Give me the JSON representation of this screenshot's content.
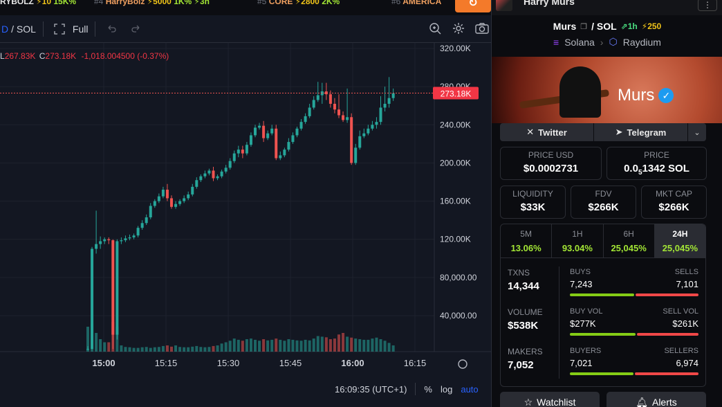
{
  "ticker": {
    "items": [
      {
        "rank": "",
        "name": "RYBOLZ",
        "bolt": "⚡10",
        "pct": "15K%"
      },
      {
        "rank": "#4",
        "name": "HarryBolz",
        "bolt": "⚡5000",
        "pct": "1K% ⚡3h"
      },
      {
        "rank": "#5",
        "name": "CORE",
        "bolt": "⚡2800",
        "pct": "2K%"
      },
      {
        "rank": "#6",
        "name": "AMERICA",
        "bolt": "",
        "pct": ""
      }
    ]
  },
  "toolbar": {
    "pair_prefix": "D",
    "pair": "/ SOL",
    "full_label": "Full"
  },
  "ohlc": {
    "l_label": "L",
    "l_value": "267.83K",
    "c_label": "C",
    "c_value": "273.18K",
    "change": "-1,018.004500 (-0.37%)"
  },
  "chart_data": {
    "type": "candlestick",
    "title": "",
    "y_ticks": [
      "320.00K",
      "280.00K",
      "240.00K",
      "200.00K",
      "160.00K",
      "120.00K",
      "80,000.00",
      "40,000.00"
    ],
    "y_tick_values": [
      320000,
      280000,
      240000,
      200000,
      160000,
      120000,
      80000,
      40000
    ],
    "ylim": [
      0,
      330000
    ],
    "x_ticks": [
      "15:00",
      "15:15",
      "15:30",
      "15:45",
      "16:00",
      "16:15"
    ],
    "last_price_label": "273.18K",
    "last_price": 273180,
    "up_color": "#26a69a",
    "down_color": "#ef5350",
    "candles": [
      {
        "o": 5000,
        "h": 8000,
        "c": 5000,
        "l": 4000
      },
      {
        "o": 5000,
        "h": 112000,
        "c": 110000,
        "l": 5000
      },
      {
        "o": 110000,
        "h": 150000,
        "c": 115000,
        "l": 105000
      },
      {
        "o": 115000,
        "h": 123000,
        "c": 118000,
        "l": 110000
      },
      {
        "o": 118000,
        "h": 122000,
        "c": 120000,
        "l": 115000
      },
      {
        "o": 120000,
        "h": 122000,
        "c": 119000,
        "l": 115000
      },
      {
        "o": 119000,
        "h": 120000,
        "c": 20000,
        "l": 5000
      },
      {
        "o": 20000,
        "h": 120000,
        "c": 118000,
        "l": 15000
      },
      {
        "o": 118000,
        "h": 122000,
        "c": 119000,
        "l": 115000
      },
      {
        "o": 119000,
        "h": 124000,
        "c": 121000,
        "l": 117000
      },
      {
        "o": 121000,
        "h": 125000,
        "c": 122000,
        "l": 119000
      },
      {
        "o": 122000,
        "h": 126000,
        "c": 124000,
        "l": 120000
      },
      {
        "o": 124000,
        "h": 134000,
        "c": 132000,
        "l": 122000
      },
      {
        "o": 132000,
        "h": 140000,
        "c": 137000,
        "l": 130000
      },
      {
        "o": 137000,
        "h": 146000,
        "c": 143000,
        "l": 135000
      },
      {
        "o": 143000,
        "h": 158000,
        "c": 155000,
        "l": 141000
      },
      {
        "o": 155000,
        "h": 162000,
        "c": 160000,
        "l": 153000
      },
      {
        "o": 160000,
        "h": 168000,
        "c": 165000,
        "l": 158000
      },
      {
        "o": 165000,
        "h": 175000,
        "c": 172000,
        "l": 163000
      },
      {
        "o": 172000,
        "h": 178000,
        "c": 163000,
        "l": 160000
      },
      {
        "o": 163000,
        "h": 166000,
        "c": 154000,
        "l": 152000
      },
      {
        "o": 154000,
        "h": 160000,
        "c": 157000,
        "l": 152000
      },
      {
        "o": 157000,
        "h": 162000,
        "c": 160000,
        "l": 155000
      },
      {
        "o": 160000,
        "h": 166000,
        "c": 163000,
        "l": 158000
      },
      {
        "o": 163000,
        "h": 170000,
        "c": 167000,
        "l": 161000
      },
      {
        "o": 167000,
        "h": 178000,
        "c": 175000,
        "l": 165000
      },
      {
        "o": 175000,
        "h": 185000,
        "c": 182000,
        "l": 173000
      },
      {
        "o": 182000,
        "h": 188000,
        "c": 186000,
        "l": 180000
      },
      {
        "o": 186000,
        "h": 192000,
        "c": 189000,
        "l": 184000
      },
      {
        "o": 189000,
        "h": 194000,
        "c": 192000,
        "l": 187000
      },
      {
        "o": 192000,
        "h": 196000,
        "c": 184000,
        "l": 181000
      },
      {
        "o": 184000,
        "h": 188000,
        "c": 186000,
        "l": 182000
      },
      {
        "o": 186000,
        "h": 193000,
        "c": 191000,
        "l": 184000
      },
      {
        "o": 191000,
        "h": 198000,
        "c": 195000,
        "l": 189000
      },
      {
        "o": 195000,
        "h": 205000,
        "c": 202000,
        "l": 193000
      },
      {
        "o": 202000,
        "h": 213000,
        "c": 210000,
        "l": 200000
      },
      {
        "o": 210000,
        "h": 218000,
        "c": 214000,
        "l": 206000
      },
      {
        "o": 214000,
        "h": 218000,
        "c": 210000,
        "l": 205000
      },
      {
        "o": 210000,
        "h": 222000,
        "c": 219000,
        "l": 208000
      },
      {
        "o": 219000,
        "h": 232000,
        "c": 229000,
        "l": 217000
      },
      {
        "o": 229000,
        "h": 240000,
        "c": 237000,
        "l": 227000
      },
      {
        "o": 237000,
        "h": 242000,
        "c": 239000,
        "l": 235000
      },
      {
        "o": 239000,
        "h": 244000,
        "c": 226000,
        "l": 222000
      },
      {
        "o": 226000,
        "h": 234000,
        "c": 231000,
        "l": 224000
      },
      {
        "o": 231000,
        "h": 240000,
        "c": 236000,
        "l": 229000
      },
      {
        "o": 236000,
        "h": 240000,
        "c": 205000,
        "l": 203000
      },
      {
        "o": 205000,
        "h": 212000,
        "c": 208000,
        "l": 203000
      },
      {
        "o": 208000,
        "h": 216000,
        "c": 214000,
        "l": 206000
      },
      {
        "o": 214000,
        "h": 226000,
        "c": 222000,
        "l": 212000
      },
      {
        "o": 222000,
        "h": 232000,
        "c": 229000,
        "l": 220000
      },
      {
        "o": 229000,
        "h": 238000,
        "c": 236000,
        "l": 227000
      },
      {
        "o": 236000,
        "h": 246000,
        "c": 243000,
        "l": 234000
      },
      {
        "o": 243000,
        "h": 252000,
        "c": 249000,
        "l": 241000
      },
      {
        "o": 249000,
        "h": 262000,
        "c": 258000,
        "l": 247000
      },
      {
        "o": 258000,
        "h": 270000,
        "c": 266000,
        "l": 256000
      },
      {
        "o": 266000,
        "h": 285000,
        "c": 271000,
        "l": 264000
      },
      {
        "o": 271000,
        "h": 284000,
        "c": 275000,
        "l": 262000
      },
      {
        "o": 275000,
        "h": 284000,
        "c": 272000,
        "l": 266000
      },
      {
        "o": 272000,
        "h": 276000,
        "c": 262000,
        "l": 258000
      },
      {
        "o": 262000,
        "h": 268000,
        "c": 256000,
        "l": 252000
      },
      {
        "o": 256000,
        "h": 272000,
        "c": 250000,
        "l": 247000
      },
      {
        "o": 250000,
        "h": 254000,
        "c": 245000,
        "l": 243000
      },
      {
        "o": 245000,
        "h": 278000,
        "c": 248000,
        "l": 242000
      },
      {
        "o": 248000,
        "h": 252000,
        "c": 200000,
        "l": 198000
      },
      {
        "o": 200000,
        "h": 220000,
        "c": 216000,
        "l": 198000
      },
      {
        "o": 216000,
        "h": 234000,
        "c": 228000,
        "l": 214000
      },
      {
        "o": 228000,
        "h": 236000,
        "c": 231000,
        "l": 226000
      },
      {
        "o": 231000,
        "h": 240000,
        "c": 236000,
        "l": 229000
      },
      {
        "o": 236000,
        "h": 244000,
        "c": 240000,
        "l": 234000
      },
      {
        "o": 240000,
        "h": 248000,
        "c": 243000,
        "l": 236000
      },
      {
        "o": 243000,
        "h": 270000,
        "c": 258000,
        "l": 240000
      },
      {
        "o": 258000,
        "h": 280000,
        "c": 262000,
        "l": 254000
      },
      {
        "o": 262000,
        "h": 290000,
        "c": 268000,
        "l": 258000
      },
      {
        "o": 268000,
        "h": 278000,
        "c": 273000,
        "l": 265000
      }
    ],
    "volumes": [
      80,
      90,
      60,
      40,
      30,
      30,
      95,
      80,
      20,
      15,
      14,
      12,
      12,
      14,
      15,
      12,
      14,
      15,
      18,
      20,
      16,
      20,
      15,
      14,
      14,
      16,
      18,
      15,
      14,
      15,
      18,
      20,
      26,
      30,
      35,
      42,
      38,
      35,
      40,
      42,
      38,
      35,
      40,
      36,
      38,
      42,
      38,
      35,
      40,
      38,
      36,
      35,
      38,
      36,
      42,
      50,
      48,
      46,
      40,
      42,
      55,
      60,
      48,
      45,
      42,
      40,
      38,
      38,
      42,
      45,
      40,
      35,
      28,
      20
    ]
  },
  "bottom_axis": {
    "clock": "16:09:35 (UTC+1)",
    "percent": "%",
    "log": "log",
    "auto": "auto"
  },
  "panel": {
    "user": "Harry Murs",
    "token": "Murs",
    "quote": "/ SOL",
    "trend": "1h",
    "boost": "250",
    "chain": "Solana",
    "dex": "Raydium",
    "banner_title": "Murs",
    "socials": [
      "Twitter",
      "Telegram"
    ],
    "price_usd_label": "PRICE USD",
    "price_usd": "$0.0002731",
    "price_label": "PRICE",
    "price_sol_a": "0.0",
    "price_sol_sub": "5",
    "price_sol_b": "1342 SOL",
    "liquidity_label": "LIQUIDITY",
    "liquidity": "$33K",
    "fdv_label": "FDV",
    "fdv": "$266K",
    "mktcap_label": "MKT CAP",
    "mktcap": "$266K",
    "timeframes": [
      {
        "label": "5M",
        "value": "13.06%"
      },
      {
        "label": "1H",
        "value": "93.04%"
      },
      {
        "label": "6H",
        "value": "25,045%"
      },
      {
        "label": "24H",
        "value": "25,045%"
      }
    ],
    "txns_label": "TXNS",
    "txns": "14,344",
    "buys_label": "BUYS",
    "buys": "7,243",
    "sells_label": "SELLS",
    "sells": "7,101",
    "volume_label": "VOLUME",
    "volume": "$538K",
    "buyvol_label": "BUY VOL",
    "buyvol": "$277K",
    "sellvol_label": "SELL VOL",
    "sellvol": "$261K",
    "makers_label": "MAKERS",
    "makers": "7,052",
    "buyers_label": "BUYERS",
    "buyers": "7,021",
    "sellers_label": "SELLERS",
    "sellers": "6,974",
    "watchlist": "Watchlist",
    "alerts": "Alerts"
  }
}
